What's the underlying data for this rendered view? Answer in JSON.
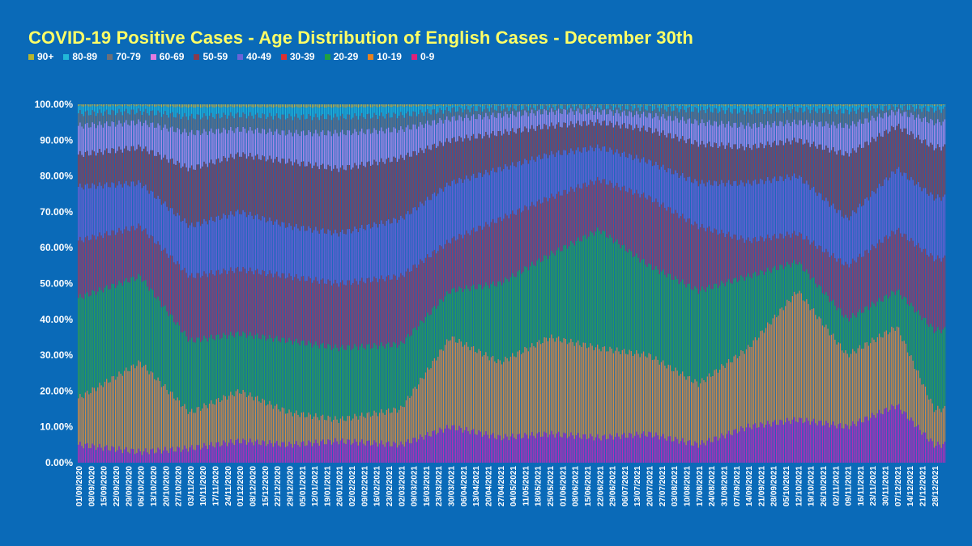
{
  "chart_data": {
    "type": "bar",
    "stacked": true,
    "title": "COVID-19 Positive Cases - Age Distribution of English Cases - December 30th",
    "ylim": [
      0,
      100
    ],
    "y_ticks": [
      "0.00%",
      "10.00%",
      "20.00%",
      "30.00%",
      "40.00%",
      "50.00%",
      "60.00%",
      "70.00%",
      "80.00%",
      "90.00%",
      "100.00%"
    ],
    "legend_order": [
      "90+",
      "80-89",
      "70-79",
      "60-69",
      "50-59",
      "40-49",
      "30-39",
      "20-29",
      "10-19",
      "0-9"
    ],
    "series_colors": {
      "0-9": "#b92cb5",
      "10-19": "#d98a3c",
      "20-29": "#2e9a52",
      "30-39": "#9a3b62",
      "40-49": "#6a5fd0",
      "50-59": "#8b3f53",
      "60-69": "#b089e6",
      "70-79": "#6a6f7c",
      "80-89": "#23b4d6",
      "90+": "#b8b24b"
    },
    "legend_colors": {
      "90+": "#b5b52e",
      "80-89": "#22b8d8",
      "70-79": "#6d6f78",
      "60-69": "#e07be0",
      "50-59": "#8a3a4c",
      "40-49": "#6c63d8",
      "30-39": "#e03030",
      "20-29": "#20a040",
      "10-19": "#e8821e",
      "0-9": "#e0207a"
    },
    "x_labels": [
      "01/09/2020",
      "08/09/2020",
      "15/09/2020",
      "22/09/2020",
      "29/09/2020",
      "06/10/2020",
      "13/10/2020",
      "20/10/2020",
      "27/10/2020",
      "03/11/2020",
      "10/11/2020",
      "17/11/2020",
      "24/11/2020",
      "01/12/2020",
      "08/12/2020",
      "15/12/2020",
      "22/12/2020",
      "29/12/2020",
      "05/01/2021",
      "12/01/2021",
      "19/01/2021",
      "26/01/2021",
      "02/02/2021",
      "09/02/2021",
      "16/02/2021",
      "23/02/2021",
      "02/03/2021",
      "09/03/2021",
      "16/03/2021",
      "23/03/2021",
      "30/03/2021",
      "06/04/2021",
      "13/04/2021",
      "20/04/2021",
      "27/04/2021",
      "04/05/2021",
      "11/05/2021",
      "18/05/2021",
      "25/05/2021",
      "01/06/2021",
      "08/06/2021",
      "15/06/2021",
      "22/06/2021",
      "29/06/2021",
      "06/07/2021",
      "13/07/2021",
      "20/07/2021",
      "27/07/2021",
      "03/08/2021",
      "10/08/2021",
      "17/08/2021",
      "24/08/2021",
      "31/08/2021",
      "07/09/2021",
      "14/09/2021",
      "21/09/2021",
      "28/09/2021",
      "05/10/2021",
      "12/10/2021",
      "19/10/2021",
      "26/10/2021",
      "02/11/2021",
      "09/11/2021",
      "16/11/2021",
      "23/11/2021",
      "30/11/2021",
      "07/12/2021",
      "14/12/2021",
      "21/12/2021",
      "28/12/2021"
    ],
    "cumulative_upper_bounds_by_week": {
      "week_index": [
        0,
        5,
        9,
        13,
        17,
        21,
        26,
        30,
        34,
        38,
        42,
        46,
        50,
        54,
        58,
        62,
        66,
        69
      ],
      "0-9": [
        5,
        3,
        4,
        6,
        5,
        6,
        5,
        10,
        7,
        8,
        7,
        8,
        5,
        10,
        12,
        10,
        16,
        5
      ],
      "10-19": [
        18,
        28,
        14,
        20,
        14,
        12,
        15,
        35,
        28,
        35,
        32,
        30,
        22,
        32,
        48,
        30,
        38,
        15
      ],
      "20-29": [
        46,
        52,
        34,
        36,
        34,
        32,
        33,
        48,
        50,
        58,
        65,
        55,
        48,
        52,
        56,
        40,
        48,
        37
      ],
      "30-39": [
        62,
        66,
        52,
        54,
        52,
        50,
        52,
        62,
        68,
        74,
        79,
        74,
        66,
        62,
        64,
        55,
        65,
        57
      ],
      "40-49": [
        77,
        78,
        66,
        70,
        66,
        64,
        68,
        78,
        82,
        86,
        88,
        84,
        78,
        78,
        80,
        68,
        82,
        74
      ],
      "50-59": [
        86,
        88,
        82,
        86,
        84,
        82,
        85,
        90,
        92,
        94,
        95,
        93,
        89,
        88,
        90,
        86,
        94,
        88
      ],
      "60-69": [
        94,
        95,
        92,
        93,
        92,
        92,
        93,
        96,
        97,
        98,
        98,
        97,
        95,
        94,
        95,
        94,
        98,
        95
      ],
      "70-79": [
        97.5,
        98,
        96.5,
        97,
        96.5,
        96.5,
        97,
        98.5,
        99,
        99.3,
        99.4,
        99,
        98.5,
        98,
        98.5,
        98,
        99.3,
        98.5
      ],
      "80-89": [
        99.5,
        99.6,
        99.2,
        99.3,
        99.2,
        99.2,
        99.4,
        99.7,
        99.8,
        99.8,
        99.9,
        99.8,
        99.7,
        99.6,
        99.7,
        99.6,
        99.9,
        99.7
      ],
      "90+": [
        100,
        100,
        100,
        100,
        100,
        100,
        100,
        100,
        100,
        100,
        100,
        100,
        100,
        100,
        100,
        100,
        100,
        100
      ]
    }
  }
}
